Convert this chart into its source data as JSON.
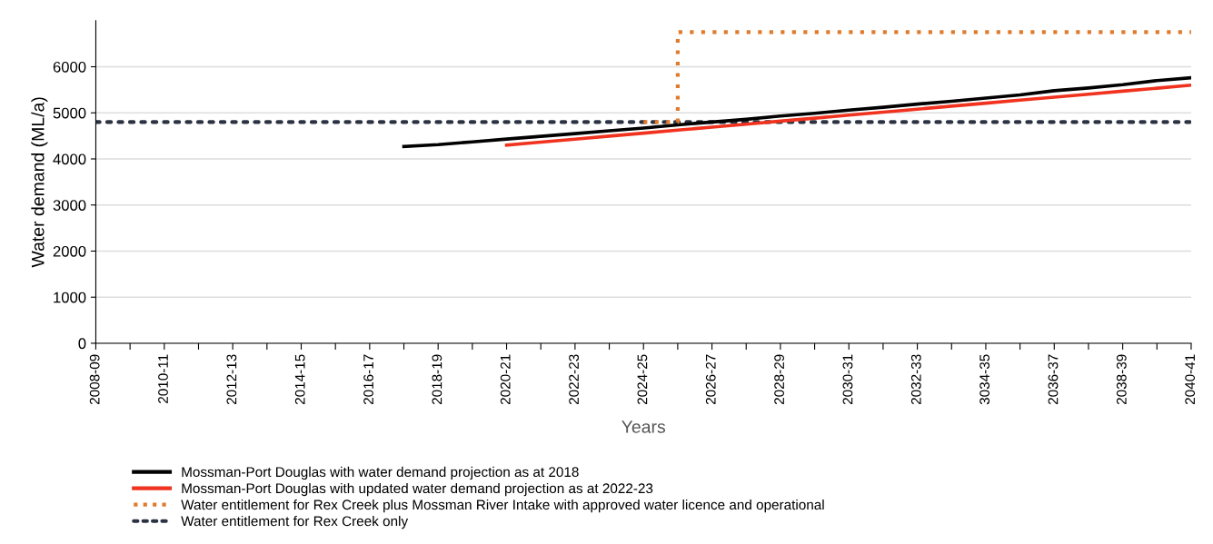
{
  "chart_data": {
    "type": "line",
    "xlabel": "Years",
    "ylabel": "Water demand (ML/a)",
    "categories": [
      "2008-09",
      null,
      "2010-11",
      null,
      "2012-13",
      null,
      "2014-15",
      null,
      "2016-17",
      null,
      "2018-19",
      null,
      "2020-21",
      null,
      "2022-23",
      null,
      "2024-25",
      null,
      "2026-27",
      null,
      "2028-29",
      null,
      "2030-31",
      null,
      "2032-33",
      null,
      "3034-35",
      null,
      "2036-37",
      null,
      "2038-39",
      null,
      "2040-41"
    ],
    "series": [
      {
        "name": "Mossman-Port Douglas with water demand projection as at 2018",
        "color": "#000000",
        "line_style": "solid",
        "values": [
          null,
          null,
          null,
          null,
          null,
          null,
          null,
          null,
          null,
          4270,
          4310,
          4370,
          4430,
          4490,
          4550,
          4610,
          4670,
          4740,
          4800,
          4860,
          4930,
          4990,
          5060,
          5120,
          5190,
          5250,
          5320,
          5390,
          5480,
          5540,
          5610,
          5700,
          5760
        ]
      },
      {
        "name": "Mossman-Port Douglas with updated water demand projection as at 2022-23",
        "color": "#f0321e",
        "line_style": "solid",
        "values": [
          null,
          null,
          null,
          null,
          null,
          null,
          null,
          null,
          null,
          null,
          null,
          null,
          4300,
          4365,
          4430,
          4495,
          4560,
          4625,
          4690,
          4755,
          4820,
          4885,
          4950,
          5015,
          5080,
          5145,
          5210,
          5275,
          5340,
          5405,
          5470,
          5535,
          5600
        ]
      },
      {
        "name": "Water entitlement for Rex Creek plus Mossman River Intake with approved water licence and operational",
        "color": "#e07b2c",
        "type": "step",
        "line_style": "dotted",
        "values": [
          null,
          null,
          null,
          null,
          null,
          null,
          null,
          null,
          null,
          null,
          null,
          null,
          null,
          null,
          null,
          null,
          4800,
          6750,
          6750,
          6750,
          6750,
          6750,
          6750,
          6750,
          6750,
          6750,
          6750,
          6750,
          6750,
          6750,
          6750,
          6750,
          6750
        ]
      },
      {
        "name": "Water entitlement for Rex Creek only",
        "color": "#2b3242",
        "line_style": "dotted",
        "values": [
          4800,
          4800,
          4800,
          4800,
          4800,
          4800,
          4800,
          4800,
          4800,
          4800,
          4800,
          4800,
          4800,
          4800,
          4800,
          4800,
          4800,
          4800,
          4800,
          4800,
          4800,
          4800,
          4800,
          4800,
          4800,
          4800,
          4800,
          4800,
          4800,
          4800,
          4800,
          4800,
          4800
        ]
      }
    ],
    "ylim": [
      0,
      7000
    ],
    "yticks": [
      0,
      1000,
      2000,
      3000,
      4000,
      5000,
      6000
    ],
    "grid": "y",
    "legend": "bottom",
    "marker": "none"
  }
}
